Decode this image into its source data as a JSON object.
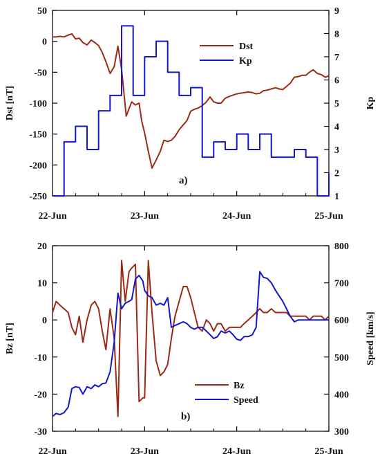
{
  "chart_data": [
    {
      "type": "line",
      "panel_label": "a)",
      "xlim": [
        0,
        3
      ],
      "x_tick_values": [
        0,
        1,
        2,
        3
      ],
      "x_tick_labels": [
        "22-Jun",
        "23-Jun",
        "24-Jun",
        "25-Jun"
      ],
      "ylabel_left": "Dst [nT]",
      "ylabel_right": "Kp",
      "ylim_left": [
        -250,
        50
      ],
      "ylim_right": [
        1,
        9
      ],
      "y_ticks_left": [
        -250,
        -200,
        -150,
        -100,
        -50,
        0,
        50
      ],
      "y_ticks_right": [
        1,
        2,
        3,
        4,
        5,
        6,
        7,
        8,
        9
      ],
      "legend_position": "top-right",
      "series": [
        {
          "name": "Dst",
          "axis": "left",
          "color": "#9b2a15",
          "x": [
            0,
            0.04,
            0.08,
            0.125,
            0.17,
            0.21,
            0.25,
            0.29,
            0.33,
            0.375,
            0.42,
            0.46,
            0.5,
            0.54,
            0.58,
            0.625,
            0.67,
            0.71,
            0.75,
            0.8,
            0.83,
            0.86,
            0.9,
            0.94,
            0.97,
            1.0,
            1.04,
            1.08,
            1.125,
            1.17,
            1.21,
            1.25,
            1.29,
            1.33,
            1.375,
            1.42,
            1.46,
            1.5,
            1.54,
            1.58,
            1.625,
            1.67,
            1.71,
            1.75,
            1.79,
            1.83,
            1.875,
            1.92,
            1.96,
            2.0,
            2.04,
            2.08,
            2.125,
            2.17,
            2.21,
            2.25,
            2.29,
            2.33,
            2.375,
            2.42,
            2.46,
            2.5,
            2.54,
            2.58,
            2.625,
            2.67,
            2.71,
            2.75,
            2.79,
            2.83,
            2.875,
            2.92,
            2.96,
            3.0
          ],
          "y": [
            7,
            7,
            8,
            7,
            10,
            12,
            4,
            5,
            -2,
            -6,
            2,
            -2,
            -7,
            -18,
            -33,
            -52,
            -41,
            -8,
            -45,
            -121,
            -109,
            -98,
            -103,
            -100,
            -130,
            -148,
            -178,
            -205,
            -192,
            -178,
            -160,
            -162,
            -160,
            -154,
            -143,
            -135,
            -128,
            -113,
            -110,
            -108,
            -104,
            -98,
            -90,
            -98,
            -100,
            -100,
            -92,
            -89,
            -87,
            -85,
            -84,
            -83,
            -82,
            -83,
            -85,
            -84,
            -80,
            -79,
            -77,
            -75,
            -77,
            -78,
            -73,
            -68,
            -58,
            -57,
            -55,
            -55,
            -50,
            -46,
            -52,
            -54,
            -58,
            -56
          ]
        },
        {
          "name": "Kp",
          "axis": "right",
          "color": "#1414c8",
          "step": true,
          "x": [
            0,
            0.125,
            0.25,
            0.375,
            0.5,
            0.625,
            0.75,
            0.875,
            1.0,
            1.125,
            1.25,
            1.375,
            1.5,
            1.625,
            1.75,
            1.875,
            2.0,
            2.125,
            2.25,
            2.375,
            2.5,
            2.625,
            2.75,
            2.875,
            3.0
          ],
          "y": [
            1.0,
            3.33,
            4.0,
            3.0,
            4.67,
            5.33,
            8.33,
            5.33,
            7.0,
            7.67,
            6.33,
            5.33,
            5.67,
            2.67,
            3.33,
            3.0,
            3.67,
            3.0,
            3.67,
            2.67,
            2.67,
            3.0,
            2.67,
            1.0,
            2.0
          ]
        }
      ]
    },
    {
      "type": "line",
      "panel_label": "b)",
      "xlim": [
        0,
        3
      ],
      "x_tick_values": [
        0,
        1,
        2,
        3
      ],
      "x_tick_labels": [
        "22-Jun",
        "23-Jun",
        "24-Jun",
        "25-Jun"
      ],
      "ylabel_left": "Bz [nT]",
      "ylabel_right": "Speed [km/s]",
      "ylim_left": [
        -30,
        20
      ],
      "ylim_right": [
        300,
        800
      ],
      "y_ticks_left": [
        -30,
        -20,
        -10,
        0,
        10,
        20
      ],
      "y_ticks_right": [
        300,
        400,
        500,
        600,
        700,
        800
      ],
      "legend_position": "bottom-center",
      "series": [
        {
          "name": "Bz",
          "axis": "left",
          "color": "#9b2a15",
          "x": [
            0,
            0.04,
            0.08,
            0.125,
            0.17,
            0.21,
            0.25,
            0.29,
            0.33,
            0.375,
            0.42,
            0.46,
            0.5,
            0.54,
            0.58,
            0.625,
            0.67,
            0.71,
            0.75,
            0.79,
            0.83,
            0.86,
            0.9,
            0.94,
            0.98,
            1.0,
            1.04,
            1.08,
            1.125,
            1.17,
            1.21,
            1.25,
            1.29,
            1.33,
            1.375,
            1.42,
            1.46,
            1.5,
            1.54,
            1.58,
            1.625,
            1.67,
            1.71,
            1.75,
            1.79,
            1.83,
            1.875,
            1.92,
            1.96,
            2.0,
            2.04,
            2.08,
            2.125,
            2.17,
            2.21,
            2.25,
            2.29,
            2.33,
            2.375,
            2.42,
            2.46,
            2.5,
            2.54,
            2.58,
            2.625,
            2.67,
            2.71,
            2.75,
            2.79,
            2.83,
            2.875,
            2.92,
            2.96,
            3.0
          ],
          "y": [
            2,
            5,
            4,
            3,
            2,
            -2,
            -4,
            1,
            -6,
            0,
            4,
            5,
            3,
            -3,
            -8,
            3,
            -5,
            -26,
            16,
            5,
            13,
            14,
            15,
            -22,
            -21,
            -21,
            16,
            2,
            -11,
            -15,
            -14,
            -12,
            -5,
            1,
            5,
            9,
            9,
            6,
            2,
            -2,
            -3,
            0,
            -1,
            -3,
            -1,
            -1,
            -3,
            -2,
            -2,
            -2,
            -2,
            -1,
            0,
            1,
            2,
            3,
            2,
            2,
            3,
            2,
            2,
            2,
            2,
            1,
            1,
            1,
            1,
            1,
            0,
            1,
            1,
            1,
            0,
            1
          ]
        },
        {
          "name": "Speed",
          "axis": "right",
          "color": "#1414c8",
          "x": [
            0,
            0.04,
            0.08,
            0.125,
            0.17,
            0.21,
            0.25,
            0.29,
            0.33,
            0.375,
            0.42,
            0.46,
            0.5,
            0.54,
            0.58,
            0.625,
            0.67,
            0.71,
            0.75,
            0.79,
            0.83,
            0.86,
            0.9,
            0.94,
            0.98,
            1.0,
            1.04,
            1.08,
            1.125,
            1.17,
            1.21,
            1.25,
            1.29,
            1.33,
            1.375,
            1.42,
            1.46,
            1.5,
            1.54,
            1.58,
            1.625,
            1.67,
            1.71,
            1.75,
            1.79,
            1.83,
            1.875,
            1.92,
            1.96,
            2.0,
            2.04,
            2.08,
            2.125,
            2.17,
            2.21,
            2.25,
            2.29,
            2.33,
            2.375,
            2.42,
            2.46,
            2.5,
            2.54,
            2.58,
            2.625,
            2.67,
            2.71,
            2.75,
            2.79,
            2.83,
            2.875,
            2.92,
            2.96,
            3.0
          ],
          "y": [
            340,
            348,
            345,
            350,
            365,
            415,
            420,
            418,
            400,
            420,
            415,
            425,
            420,
            428,
            430,
            460,
            540,
            672,
            630,
            645,
            650,
            655,
            710,
            720,
            705,
            680,
            665,
            660,
            640,
            645,
            640,
            660,
            580,
            585,
            590,
            595,
            590,
            580,
            575,
            580,
            580,
            570,
            560,
            550,
            555,
            570,
            565,
            570,
            560,
            548,
            545,
            555,
            555,
            560,
            580,
            730,
            715,
            712,
            700,
            680,
            665,
            650,
            630,
            610,
            595,
            600,
            600,
            600,
            600,
            600,
            600,
            600,
            600,
            600
          ]
        }
      ]
    }
  ]
}
